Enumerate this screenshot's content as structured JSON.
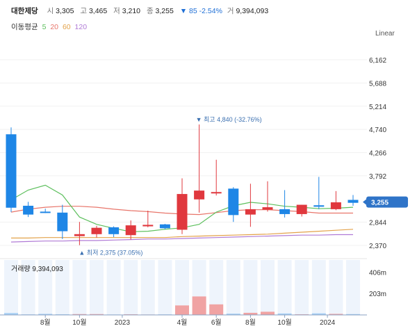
{
  "header": {
    "name": "대한제당",
    "open_label": "시",
    "open": "3,305",
    "high_label": "고",
    "high": "3,465",
    "low_label": "저",
    "low": "3,210",
    "close_label": "종",
    "close": "3,255",
    "change": "▼ 85 -2.54%",
    "volume_label": "거",
    "volume": "9,394,093"
  },
  "ma_legend": {
    "title": "이동평균",
    "periods": [
      {
        "label": "5",
        "color": "#5cbf5c"
      },
      {
        "label": "20",
        "color": "#e8756a"
      },
      {
        "label": "60",
        "color": "#e3a24a"
      },
      {
        "label": "120",
        "color": "#b07ad6"
      }
    ]
  },
  "scale_label": "Linear",
  "colors": {
    "up": "#e0383e",
    "down": "#1e86e6",
    "vol_up": "#f0a3a3",
    "vol_down": "#a8d0f5",
    "vol_bg": "#eef4fc"
  },
  "chart_data": {
    "type": "candlestick",
    "y_ticks": [
      "6,162",
      "5,688",
      "5,214",
      "4,740",
      "4,266",
      "3,792",
      "2,844",
      "2,370"
    ],
    "ylim": [
      2200,
      6500
    ],
    "current_price": "3,255",
    "annotations": {
      "high": "▼ 최고 4,840 (-32.76%)",
      "low": "▲ 최저 2,375 (37.05%)"
    },
    "x_ticks": [
      "8월",
      "10월",
      "2023",
      "4월",
      "6월",
      "8월",
      "10월",
      "2024"
    ],
    "candles": [
      {
        "o": 4640,
        "h": 4780,
        "l": 3050,
        "c": 3140
      },
      {
        "o": 3180,
        "h": 3260,
        "l": 2950,
        "c": 3000
      },
      {
        "o": 3060,
        "h": 3120,
        "l": 3030,
        "c": 3040
      },
      {
        "o": 3040,
        "h": 3200,
        "l": 2500,
        "c": 2660
      },
      {
        "o": 2560,
        "h": 2850,
        "l": 2375,
        "c": 2600
      },
      {
        "o": 2600,
        "h": 2770,
        "l": 2530,
        "c": 2730
      },
      {
        "o": 2740,
        "h": 2760,
        "l": 2540,
        "c": 2600
      },
      {
        "o": 2580,
        "h": 2880,
        "l": 2490,
        "c": 2780
      },
      {
        "o": 2760,
        "h": 3080,
        "l": 2740,
        "c": 2790
      },
      {
        "o": 2800,
        "h": 2810,
        "l": 2700,
        "c": 2720
      },
      {
        "o": 2690,
        "h": 3740,
        "l": 2600,
        "c": 3420
      },
      {
        "o": 3310,
        "h": 4840,
        "l": 3040,
        "c": 3490
      },
      {
        "o": 3440,
        "h": 4120,
        "l": 3390,
        "c": 3460
      },
      {
        "o": 3530,
        "h": 3560,
        "l": 2850,
        "c": 2990
      },
      {
        "o": 3000,
        "h": 3630,
        "l": 2750,
        "c": 3110
      },
      {
        "o": 3100,
        "h": 3680,
        "l": 3060,
        "c": 3150
      },
      {
        "o": 3110,
        "h": 3500,
        "l": 2940,
        "c": 3010
      },
      {
        "o": 3010,
        "h": 3200,
        "l": 2960,
        "c": 3200
      },
      {
        "o": 3190,
        "h": 3770,
        "l": 3110,
        "c": 3160
      },
      {
        "o": 3110,
        "h": 3480,
        "l": 3090,
        "c": 3250
      },
      {
        "o": 3300,
        "h": 3400,
        "l": 3180,
        "c": 3240
      }
    ],
    "ma5": [
      3300,
      3500,
      3600,
      3400,
      2950,
      2800,
      2720,
      2650,
      2660,
      2700,
      2730,
      2800,
      3050,
      3180,
      3250,
      3220,
      3170,
      3150,
      3120,
      3130,
      3150
    ],
    "ma20": [
      3050,
      3110,
      3150,
      3170,
      3170,
      3150,
      3110,
      3080,
      3060,
      3030,
      3010,
      3000,
      3040,
      3080,
      3100,
      3100,
      3080,
      3060,
      3030,
      3030,
      3030
    ],
    "ma60": [
      2520,
      2520,
      2530,
      2530,
      2530,
      2530,
      2530,
      2530,
      2530,
      2530,
      2550,
      2560,
      2570,
      2580,
      2590,
      2600,
      2620,
      2640,
      2660,
      2680,
      2700
    ],
    "ma120": [
      2440,
      2450,
      2460,
      2460,
      2470,
      2470,
      2480,
      2490,
      2500,
      2500,
      2510,
      2520,
      2530,
      2540,
      2550,
      2560,
      2570,
      2580,
      2580,
      2590,
      2590
    ],
    "volume_label": "거래량 9,394,093",
    "volume_ticks": [
      "406m",
      "203m"
    ],
    "volume_max": 520,
    "volumes": [
      18,
      5,
      10,
      6,
      8,
      8,
      4,
      6,
      4,
      5,
      90,
      175,
      100,
      12,
      20,
      30,
      14,
      6,
      15,
      10,
      8
    ]
  }
}
